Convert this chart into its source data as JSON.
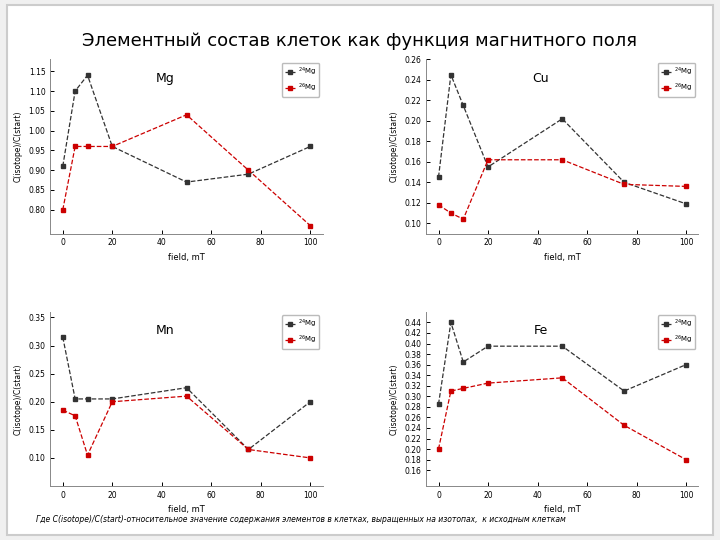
{
  "title": "Элементный состав клеток как функция магнитного поля",
  "footnote": "Где C(isotope)/C(start)-относительное значение содержания элементов в клетках, выращенных на изотопах,  к исходным клеткам",
  "xlabel": "field, mT",
  "ylabel": "C(isotope)/C(start)",
  "legend_labels": [
    "$^{24}$Mg",
    "$^{26}$Mg"
  ],
  "x_ticks": [
    0,
    20,
    40,
    60,
    80,
    100
  ],
  "plots": {
    "Mg": {
      "x": [
        0,
        5,
        10,
        20,
        50,
        75,
        100
      ],
      "black": [
        0.91,
        1.1,
        1.14,
        0.96,
        0.87,
        0.89,
        0.96
      ],
      "red": [
        0.8,
        0.96,
        0.96,
        0.96,
        1.04,
        0.9,
        0.76
      ],
      "ylim": [
        0.74,
        1.18
      ],
      "yticks": [
        0.8,
        0.85,
        0.9,
        0.95,
        1.0,
        1.05,
        1.1,
        1.15
      ]
    },
    "Cu": {
      "x": [
        0,
        5,
        10,
        20,
        50,
        75,
        100
      ],
      "black": [
        0.145,
        0.245,
        0.215,
        0.155,
        0.202,
        0.14,
        0.119
      ],
      "red": [
        0.118,
        0.11,
        0.104,
        0.162,
        0.162,
        0.138,
        0.136
      ],
      "ylim": [
        0.09,
        0.26
      ],
      "yticks": [
        0.1,
        0.12,
        0.14,
        0.16,
        0.18,
        0.2,
        0.22,
        0.24,
        0.26
      ]
    },
    "Mn": {
      "x": [
        0,
        5,
        10,
        20,
        50,
        75,
        100
      ],
      "black": [
        0.315,
        0.205,
        0.205,
        0.205,
        0.225,
        0.115,
        0.2
      ],
      "red": [
        0.185,
        0.175,
        0.105,
        0.2,
        0.21,
        0.115,
        0.1
      ],
      "ylim": [
        0.05,
        0.36
      ],
      "yticks": [
        0.1,
        0.15,
        0.2,
        0.25,
        0.3,
        0.35
      ]
    },
    "Fe": {
      "x": [
        0,
        5,
        10,
        20,
        50,
        75,
        100
      ],
      "black": [
        0.285,
        0.44,
        0.365,
        0.395,
        0.395,
        0.31,
        0.36
      ],
      "red": [
        0.2,
        0.31,
        0.315,
        0.325,
        0.335,
        0.245,
        0.18
      ],
      "ylim": [
        0.13,
        0.46
      ],
      "yticks": [
        0.16,
        0.18,
        0.2,
        0.22,
        0.24,
        0.26,
        0.28,
        0.3,
        0.32,
        0.34,
        0.36,
        0.38,
        0.4,
        0.42,
        0.44
      ]
    }
  },
  "black_color": "#333333",
  "red_color": "#cc0000",
  "bg_color": "#f0f0f0",
  "panel_bg": "#ffffff"
}
